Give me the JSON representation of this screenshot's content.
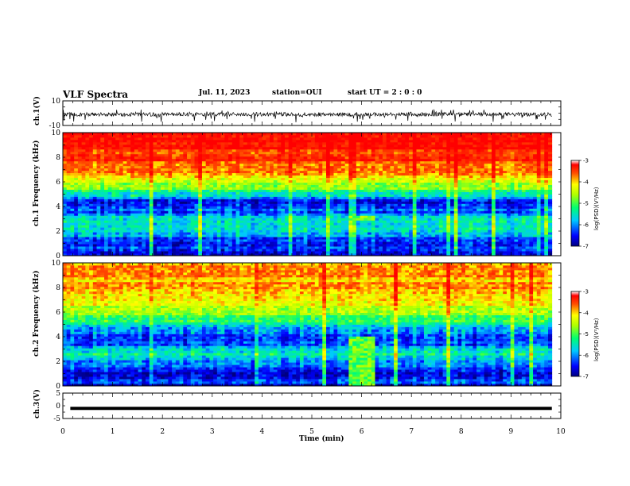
{
  "header": {
    "title": "VLF Spectra",
    "date": "Jul. 11, 2023",
    "station": "station=OUI",
    "start": "start UT = 2 : 0 : 0"
  },
  "colors": {
    "spectrogram_low": "#0000c8",
    "spectrogram_mid": "#00e060",
    "spectrogram_high": "#ff2a00",
    "waveform": "#000000"
  },
  "chart_data": [
    {
      "type": "line",
      "name": "ch1-waveform",
      "ylabel": "ch.1(V)",
      "ylim": [
        -10,
        10
      ],
      "y_tick_labels": [
        "10",
        "-10"
      ],
      "xlim": [
        0,
        10
      ],
      "data_extent_min": 9.82,
      "note_values": "amplitude mostly within about -3 to 1 V with spikes to about -6 V"
    },
    {
      "type": "heatmap",
      "name": "ch1-spectrogram",
      "ylabel": "ch.1 Frequency (kHz)",
      "ylim": [
        0,
        10
      ],
      "y_tick_labels": [
        "0",
        "2",
        "4",
        "6",
        "8",
        "10"
      ],
      "xlim": [
        0,
        10
      ],
      "data_extent_min": 9.82,
      "colorbar": {
        "label": "log(PSD)(V²/Hz)",
        "range": [
          -7,
          -3
        ],
        "tick_labels": [
          "-3",
          "-4",
          "-5",
          "-6",
          "-7"
        ]
      },
      "level_profile": [
        {
          "f": 0.0,
          "level": -6.6
        },
        {
          "f": 0.5,
          "level": -6.3
        },
        {
          "f": 1.0,
          "level": -6.6
        },
        {
          "f": 1.5,
          "level": -6.1
        },
        {
          "f": 2.0,
          "level": -5.7
        },
        {
          "f": 2.5,
          "level": -5.4
        },
        {
          "f": 3.0,
          "level": -5.6
        },
        {
          "f": 3.5,
          "level": -6.1
        },
        {
          "f": 4.0,
          "level": -6.6
        },
        {
          "f": 4.5,
          "level": -6.4
        },
        {
          "f": 5.0,
          "level": -5.6
        },
        {
          "f": 5.5,
          "level": -4.9
        },
        {
          "f": 6.0,
          "level": -4.6
        },
        {
          "f": 6.5,
          "level": -4.0
        },
        {
          "f": 7.0,
          "level": -3.6
        },
        {
          "f": 8.0,
          "level": -3.3
        },
        {
          "f": 9.0,
          "level": -3.2
        },
        {
          "f": 10.0,
          "level": -3.2
        }
      ],
      "features": [
        {
          "t_start": 5.7,
          "t_end": 6.2,
          "f_low": 2.8,
          "f_high": 3.3,
          "level": -4.8
        }
      ]
    },
    {
      "type": "heatmap",
      "name": "ch2-spectrogram",
      "ylabel": "ch.2 Frequency (kHz)",
      "ylim": [
        0,
        10
      ],
      "y_tick_labels": [
        "0",
        "2",
        "4",
        "6",
        "8",
        "10"
      ],
      "xlim": [
        0,
        10
      ],
      "data_extent_min": 9.82,
      "colorbar": {
        "label": "log(PSD)(V²/Hz)",
        "range": [
          -7,
          -3
        ],
        "tick_labels": [
          "-3",
          "-4",
          "-5",
          "-6",
          "-7"
        ]
      },
      "level_profile": [
        {
          "f": 0.0,
          "level": -6.7
        },
        {
          "f": 0.5,
          "level": -6.2
        },
        {
          "f": 1.0,
          "level": -6.7
        },
        {
          "f": 1.5,
          "level": -6.4
        },
        {
          "f": 2.0,
          "level": -6.0
        },
        {
          "f": 2.5,
          "level": -5.5
        },
        {
          "f": 3.0,
          "level": -5.6
        },
        {
          "f": 3.5,
          "level": -6.2
        },
        {
          "f": 4.0,
          "level": -6.4
        },
        {
          "f": 4.5,
          "level": -6.0
        },
        {
          "f": 5.0,
          "level": -5.4
        },
        {
          "f": 5.5,
          "level": -5.0
        },
        {
          "f": 6.0,
          "level": -4.7
        },
        {
          "f": 6.5,
          "level": -4.4
        },
        {
          "f": 7.0,
          "level": -4.1
        },
        {
          "f": 8.0,
          "level": -3.9
        },
        {
          "f": 9.0,
          "level": -3.8
        },
        {
          "f": 10.0,
          "level": -3.8
        }
      ],
      "features": [
        {
          "t_start": 5.7,
          "t_end": 6.2,
          "f_low": 0.0,
          "f_high": 4.0,
          "level": -4.9
        }
      ]
    },
    {
      "type": "line",
      "name": "ch3-waveform",
      "ylabel": "ch.3(V)",
      "ylim": [
        -5,
        5
      ],
      "y_tick_labels": [
        "5",
        "0",
        "-5"
      ],
      "xlim": [
        0,
        10
      ],
      "data_extent": [
        0.15,
        9.82
      ],
      "constant_value": -1
    }
  ],
  "xaxis": {
    "label": "Time (min)",
    "ticks": [
      "0",
      "1",
      "2",
      "3",
      "4",
      "5",
      "6",
      "7",
      "8",
      "9",
      "10"
    ]
  }
}
